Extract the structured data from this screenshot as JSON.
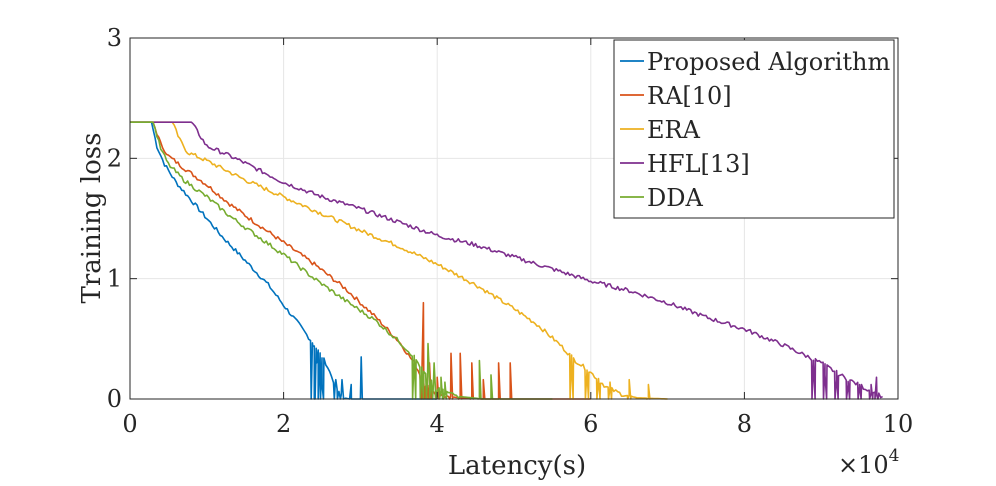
{
  "chart_data": {
    "type": "line",
    "title": "",
    "xlabel": "Latency(s)",
    "ylabel": "Training loss",
    "x_exponent_label": "×10",
    "x_exponent_power": "4",
    "xlim": [
      0,
      10
    ],
    "ylim": [
      0,
      3
    ],
    "xticks": [
      0,
      2,
      4,
      6,
      8,
      10
    ],
    "yticks": [
      0,
      1,
      2,
      3
    ],
    "grid": true,
    "legend_position": "top-right",
    "series": [
      {
        "name": "Proposed Algorithm",
        "color": "#0072BD",
        "x": [
          0,
          0.28,
          0.35,
          0.45,
          0.6,
          0.8,
          1.0,
          1.2,
          1.5,
          1.8,
          2.0,
          2.2,
          2.4,
          2.55,
          2.65,
          2.72,
          2.78,
          2.86,
          2.95,
          3.0,
          3.05,
          3.2,
          3.5,
          4.0
        ],
        "y": [
          2.3,
          2.3,
          2.1,
          1.95,
          1.8,
          1.65,
          1.5,
          1.35,
          1.15,
          0.95,
          0.78,
          0.62,
          0.45,
          0.3,
          0.15,
          0.05,
          0.01,
          0.0,
          0.0,
          0.0,
          0.0,
          0.0,
          0.0,
          0.0
        ],
        "spikes": [
          [
            2.38,
            0.44
          ],
          [
            2.43,
            0.3
          ],
          [
            2.5,
            0.12
          ],
          [
            2.68,
            0.16
          ],
          [
            2.76,
            0.16
          ],
          [
            2.88,
            0.12
          ],
          [
            3.01,
            0.35
          ]
        ]
      },
      {
        "name": "RA[10]",
        "color": "#D95319",
        "x": [
          0,
          0.3,
          0.4,
          0.5,
          0.7,
          1.0,
          1.3,
          1.6,
          2.0,
          2.4,
          2.8,
          3.2,
          3.5,
          3.7,
          3.85,
          4.0,
          4.3,
          4.6,
          5.0,
          5.5,
          6.0
        ],
        "y": [
          2.3,
          2.3,
          2.12,
          2.02,
          1.92,
          1.78,
          1.62,
          1.48,
          1.3,
          1.12,
          0.92,
          0.68,
          0.48,
          0.3,
          0.12,
          0.03,
          0.01,
          0.0,
          0.0,
          0.0,
          0.0
        ],
        "spikes": [
          [
            3.82,
            0.8
          ],
          [
            3.9,
            0.3
          ],
          [
            4.0,
            0.18
          ],
          [
            4.18,
            0.38
          ],
          [
            4.3,
            0.38
          ],
          [
            4.45,
            0.3
          ],
          [
            4.6,
            0.16
          ],
          [
            4.8,
            0.3
          ],
          [
            4.95,
            0.3
          ]
        ]
      },
      {
        "name": "ERA",
        "color": "#EDB120",
        "x": [
          0,
          0.55,
          0.65,
          0.75,
          1.0,
          1.5,
          2.0,
          2.5,
          3.0,
          3.5,
          4.0,
          4.5,
          5.0,
          5.3,
          5.6,
          5.8,
          6.0,
          6.2,
          6.4,
          6.6,
          7.0
        ],
        "y": [
          2.3,
          2.3,
          2.15,
          2.05,
          1.98,
          1.82,
          1.68,
          1.54,
          1.4,
          1.27,
          1.12,
          0.95,
          0.75,
          0.62,
          0.45,
          0.32,
          0.22,
          0.1,
          0.04,
          0.01,
          0.0
        ],
        "spikes": [
          [
            5.75,
            0.32
          ],
          [
            5.95,
            0.24
          ],
          [
            6.1,
            0.17
          ],
          [
            6.25,
            0.14
          ],
          [
            6.5,
            0.16
          ],
          [
            6.75,
            0.12
          ]
        ]
      },
      {
        "name": "HFL[13]",
        "color": "#7E2F8E",
        "x": [
          0,
          0.8,
          0.9,
          1.0,
          1.2,
          1.5,
          2.0,
          2.5,
          3.0,
          3.5,
          4.0,
          4.5,
          5.0,
          5.5,
          6.0,
          6.5,
          7.0,
          7.5,
          8.0,
          8.5,
          9.0,
          9.3,
          9.6,
          9.8
        ],
        "y": [
          2.3,
          2.3,
          2.2,
          2.1,
          2.05,
          1.96,
          1.8,
          1.68,
          1.58,
          1.47,
          1.36,
          1.28,
          1.18,
          1.08,
          0.98,
          0.9,
          0.8,
          0.68,
          0.58,
          0.45,
          0.3,
          0.18,
          0.08,
          0.02
        ],
        "spikes": [
          [
            8.9,
            0.3
          ],
          [
            9.05,
            0.2
          ],
          [
            9.2,
            0.16
          ],
          [
            9.35,
            0.12
          ],
          [
            9.5,
            0.12
          ],
          [
            9.65,
            0.12
          ],
          [
            9.72,
            0.18
          ]
        ]
      },
      {
        "name": "DDA",
        "color": "#77AC30",
        "x": [
          0,
          0.3,
          0.4,
          0.5,
          0.7,
          1.0,
          1.3,
          1.6,
          2.0,
          2.4,
          2.8,
          3.2,
          3.5,
          3.7,
          3.85,
          4.0,
          4.3,
          4.6,
          5.0,
          5.5
        ],
        "y": [
          2.3,
          2.3,
          2.08,
          1.95,
          1.82,
          1.68,
          1.52,
          1.38,
          1.2,
          1.0,
          0.82,
          0.65,
          0.48,
          0.35,
          0.2,
          0.08,
          0.02,
          0.0,
          0.0,
          0.0
        ],
        "spikes": [
          [
            3.7,
            0.35
          ],
          [
            3.8,
            0.2
          ],
          [
            3.88,
            0.46
          ],
          [
            3.96,
            0.3
          ],
          [
            4.05,
            0.18
          ],
          [
            4.1,
            0.14
          ],
          [
            4.55,
            0.32
          ],
          [
            4.7,
            0.2
          ]
        ]
      }
    ]
  }
}
